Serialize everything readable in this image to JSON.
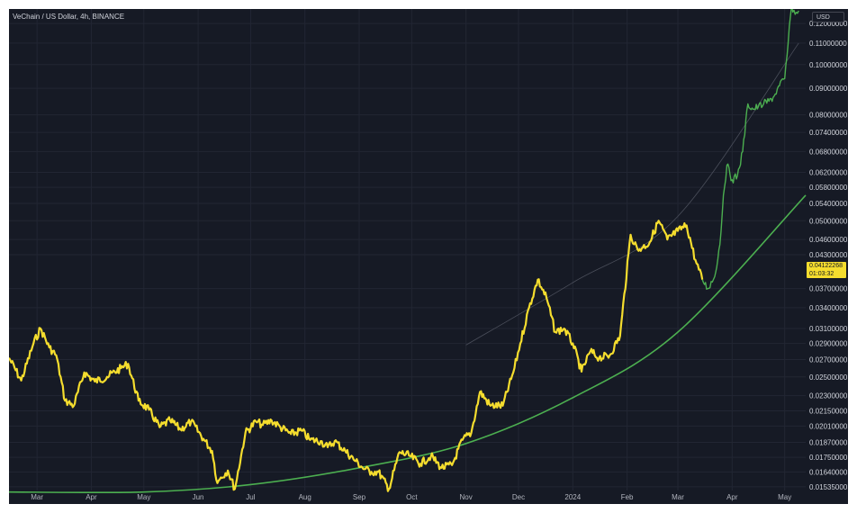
{
  "header": {
    "title": "VeChain / US Dollar, 4h, BINANCE",
    "currency": "USD"
  },
  "last_price": {
    "value": "0.04122268",
    "countdown": "01:03:32"
  },
  "colors": {
    "background": "#161a25",
    "price_yellow": "#f5dd2e",
    "price_green": "#4caf50",
    "support_curve": "#4caf50",
    "faint_curve": "#4a4e5a"
  },
  "chart_data": {
    "type": "line",
    "title": "",
    "xlabel": "",
    "ylabel": "",
    "yscale": "log",
    "grid": true,
    "x_ticks": [
      "Mar",
      "Apr",
      "May",
      "Jun",
      "Jul",
      "Aug",
      "Sep",
      "Oct",
      "Nov",
      "Dec",
      "2024",
      "Feb",
      "Mar",
      "Apr",
      "May"
    ],
    "y_ticks": [
      "0.12000000",
      "0.11000000",
      "0.10000000",
      "0.09000000",
      "0.08000000",
      "0.07400000",
      "0.06800000",
      "0.06200000",
      "0.05800000",
      "0.05400000",
      "0.05000000",
      "0.04600000",
      "0.04300000",
      "0.03700000",
      "0.03400000",
      "0.03100000",
      "0.02900000",
      "0.02700000",
      "0.02500000",
      "0.02300000",
      "0.02150000",
      "0.02010000",
      "0.01870000",
      "0.01750000",
      "0.01640000",
      "0.01535000"
    ],
    "ylim": [
      0.0151,
      0.128
    ],
    "series": [
      {
        "color": "#f5dd2e",
        "x": [
          "2023-02-13",
          "2023-02-20",
          "2023-02-27",
          "2023-03-03",
          "2023-03-08",
          "2023-03-12",
          "2023-03-17",
          "2023-03-22",
          "2023-03-28",
          "2023-04-03",
          "2023-04-10",
          "2023-04-18",
          "2023-04-22",
          "2023-04-28",
          "2023-05-04",
          "2023-05-10",
          "2023-05-16",
          "2023-05-22",
          "2023-05-28",
          "2023-06-04",
          "2023-06-09",
          "2023-06-12",
          "2023-06-14",
          "2023-06-18",
          "2023-06-22",
          "2023-06-28",
          "2023-07-04",
          "2023-07-08",
          "2023-07-13",
          "2023-07-18",
          "2023-07-24",
          "2023-07-30",
          "2023-08-04",
          "2023-08-10",
          "2023-08-14",
          "2023-08-18",
          "2023-08-24",
          "2023-08-30",
          "2023-09-04",
          "2023-09-08",
          "2023-09-12",
          "2023-09-18",
          "2023-09-24",
          "2023-09-30",
          "2023-10-06",
          "2023-10-12",
          "2023-10-18",
          "2023-10-24",
          "2023-10-30",
          "2023-11-04",
          "2023-11-09",
          "2023-11-15",
          "2023-11-22",
          "2023-11-28",
          "2023-12-02",
          "2023-12-07",
          "2023-12-12",
          "2023-12-17",
          "2023-12-22",
          "2023-12-27",
          "2024-01-01",
          "2024-01-06",
          "2024-01-11",
          "2024-01-16",
          "2024-01-22",
          "2024-01-28",
          "2024-02-03",
          "2024-02-07",
          "2024-02-10",
          "2024-02-14",
          "2024-02-19",
          "2024-02-24",
          "2024-03-01",
          "2024-03-06",
          "2024-03-11",
          "2024-03-15"
        ],
        "values": [
          0.0272,
          0.0246,
          0.029,
          0.031,
          0.0285,
          0.0275,
          0.0225,
          0.022,
          0.0255,
          0.0245,
          0.025,
          0.026,
          0.0265,
          0.0225,
          0.0216,
          0.02,
          0.0206,
          0.0198,
          0.0205,
          0.019,
          0.018,
          0.0156,
          0.016,
          0.0165,
          0.0152,
          0.0195,
          0.0205,
          0.0202,
          0.0206,
          0.02,
          0.0194,
          0.0197,
          0.0189,
          0.0188,
          0.0183,
          0.0188,
          0.018,
          0.0172,
          0.0166,
          0.0164,
          0.0164,
          0.0152,
          0.0179,
          0.0176,
          0.017,
          0.0176,
          0.0167,
          0.0169,
          0.0189,
          0.0195,
          0.0234,
          0.022,
          0.022,
          0.0255,
          0.029,
          0.034,
          0.0385,
          0.0355,
          0.0305,
          0.031,
          0.029,
          0.0256,
          0.028,
          0.0272,
          0.0275,
          0.03,
          0.047,
          0.044,
          0.0444,
          0.0455,
          0.05,
          0.046,
          0.0478,
          0.049,
          0.042,
          0.0385
        ]
      },
      {
        "color": "#4caf50",
        "x": [
          "2024-03-15",
          "2024-03-18",
          "2024-03-22",
          "2024-03-25",
          "2024-03-27",
          "2024-03-29",
          "2024-04-01",
          "2024-04-04",
          "2024-04-07",
          "2024-04-10",
          "2024-04-13",
          "2024-04-16",
          "2024-04-19",
          "2024-04-22",
          "2024-04-25",
          "2024-04-28",
          "2024-05-01",
          "2024-05-03",
          "2024-05-05",
          "2024-05-07",
          "2024-05-09"
        ],
        "values": [
          0.0385,
          0.037,
          0.039,
          0.045,
          0.056,
          0.064,
          0.06,
          0.061,
          0.068,
          0.084,
          0.082,
          0.083,
          0.084,
          0.085,
          0.087,
          0.091,
          0.094,
          0.11,
          0.13,
          0.125,
          0.127
        ]
      }
    ],
    "annotations": [
      {
        "type": "curve",
        "color": "#4caf50",
        "x": [
          "2023-02-13",
          "2023-05-01",
          "2023-07-01",
          "2023-09-01",
          "2023-11-01",
          "2024-01-01",
          "2024-03-01",
          "2024-05-13"
        ],
        "values": [
          0.015,
          0.015,
          0.0155,
          0.0167,
          0.0186,
          0.0228,
          0.0305,
          0.056
        ]
      },
      {
        "type": "curve",
        "color": "#4a4e5a",
        "x": [
          "2023-11-01",
          "2024-01-01",
          "2024-03-01",
          "2024-05-09"
        ],
        "values": [
          0.0288,
          0.038,
          0.051,
          0.11
        ]
      }
    ]
  }
}
